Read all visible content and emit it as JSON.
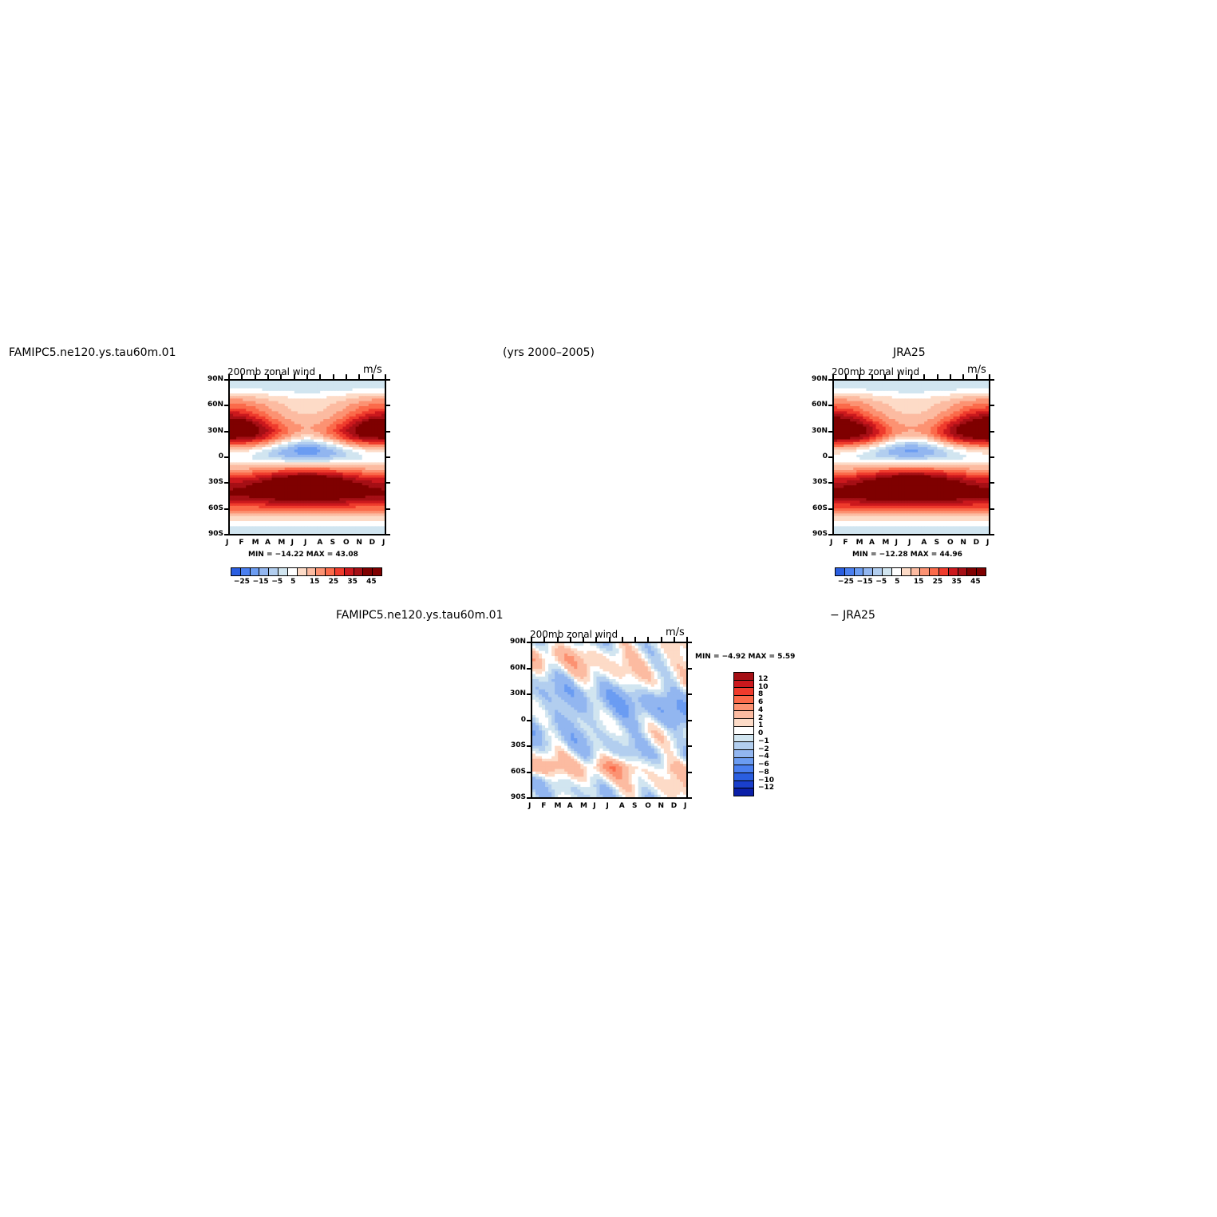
{
  "header": {
    "model_case": "FAMIPC5.ne120.ys.tau60m.01",
    "years": "(yrs 2000–2005)",
    "obs": "JRA25",
    "diff_left": "FAMIPC5.ne120.ys.tau60m.01",
    "diff_right": "− JRA25"
  },
  "chart_data": [
    {
      "type": "heatmap",
      "title": "200mb zonal wind",
      "units": "m/s",
      "xlabel": "",
      "ylabel": "",
      "x_ticks": [
        "J",
        "F",
        "M",
        "A",
        "M",
        "J",
        "J",
        "A",
        "S",
        "O",
        "N",
        "D",
        "J"
      ],
      "y_ticks": [
        "90N",
        "60N",
        "30N",
        "0",
        "30S",
        "60S",
        "90S"
      ],
      "ylim": [
        -90,
        90
      ],
      "min_label": "MIN = −14.22 MAX =  43.08",
      "min": -14.22,
      "max": 43.08,
      "colorbar_levels": [
        -25,
        -20,
        -15,
        -10,
        -5,
        0,
        5,
        10,
        15,
        20,
        25,
        30,
        35,
        40,
        45
      ],
      "colorbar_labels": [
        "−25",
        "−15",
        "−5",
        "5",
        "15",
        "25",
        "35",
        "45"
      ],
      "colorbar_orientation": "horizontal",
      "features": [
        {
          "kind": "jet",
          "lat": 30,
          "months": "Jan-Mar, Dec",
          "peak": 43.08
        },
        {
          "kind": "jet",
          "lat": -30,
          "months": "Jun-Sep",
          "peak": 40
        },
        {
          "kind": "easterlies",
          "lat": 5,
          "months": "Jun-Sep",
          "peak": -14.22
        }
      ]
    },
    {
      "type": "heatmap",
      "title": "200mb zonal wind",
      "units": "m/s",
      "xlabel": "",
      "ylabel": "",
      "x_ticks": [
        "J",
        "F",
        "M",
        "A",
        "M",
        "J",
        "J",
        "A",
        "S",
        "O",
        "N",
        "D",
        "J"
      ],
      "y_ticks": [
        "90N",
        "60N",
        "30N",
        "0",
        "30S",
        "60S",
        "90S"
      ],
      "ylim": [
        -90,
        90
      ],
      "min_label": "MIN = −12.28 MAX =  44.96",
      "min": -12.28,
      "max": 44.96,
      "colorbar_levels": [
        -25,
        -20,
        -15,
        -10,
        -5,
        0,
        5,
        10,
        15,
        20,
        25,
        30,
        35,
        40,
        45
      ],
      "colorbar_labels": [
        "−25",
        "−15",
        "−5",
        "5",
        "15",
        "25",
        "35",
        "45"
      ],
      "colorbar_orientation": "horizontal",
      "features": [
        {
          "kind": "jet",
          "lat": 30,
          "months": "Jan-Mar, Dec",
          "peak": 44.96
        },
        {
          "kind": "jet",
          "lat": -30,
          "months": "Jun-Sep",
          "peak": 40
        },
        {
          "kind": "easterlies",
          "lat": 5,
          "months": "Jun-Sep",
          "peak": -12.28
        }
      ]
    },
    {
      "type": "heatmap",
      "title": "200mb zonal wind",
      "units": "m/s",
      "xlabel": "",
      "ylabel": "",
      "x_ticks": [
        "J",
        "F",
        "M",
        "A",
        "M",
        "J",
        "J",
        "A",
        "S",
        "O",
        "N",
        "D",
        "J"
      ],
      "y_ticks": [
        "90N",
        "60N",
        "30N",
        "0",
        "30S",
        "60S",
        "90S"
      ],
      "ylim": [
        -90,
        90
      ],
      "min_label": "MIN =   −4.92 MAX =    5.59",
      "min": -4.92,
      "max": 5.59,
      "colorbar_levels": [
        -12,
        -10,
        -8,
        -6,
        -4,
        -2,
        -1,
        0,
        1,
        2,
        4,
        6,
        8,
        10,
        12
      ],
      "colorbar_labels": [
        "12",
        "10",
        "8",
        "6",
        "4",
        "2",
        "1",
        "0",
        "−1",
        "−2",
        "−4",
        "−6",
        "−8",
        "−10",
        "−12"
      ],
      "colorbar_orientation": "vertical"
    }
  ],
  "colors": {
    "pos": [
      "#fddbc7",
      "#fcbba1",
      "#fc9272",
      "#fb6a4a",
      "#ef3b2c",
      "#cb181d",
      "#a50f15",
      "#7f0000"
    ],
    "neutral": "#ffffff",
    "neg": [
      "#d1e5f0",
      "#b2ceef",
      "#92b6f0",
      "#6b9cf2",
      "#4a7ff0",
      "#2a5ee0",
      "#1a3fcc",
      "#0b1fa8",
      "#00008b"
    ]
  }
}
